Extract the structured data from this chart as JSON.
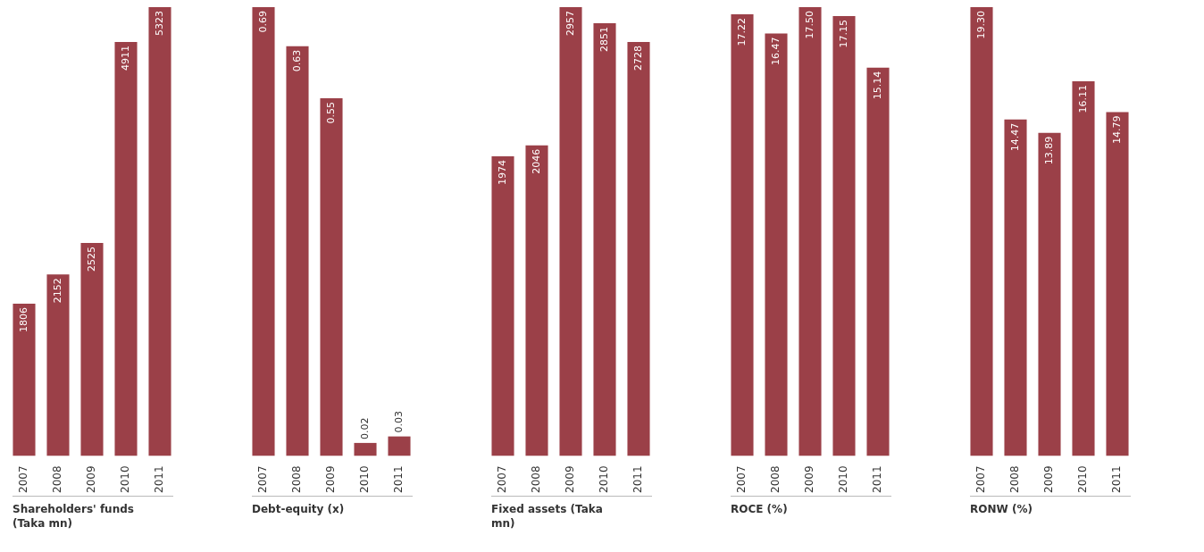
{
  "chart_data": [
    {
      "type": "bar",
      "xlabel": "Shareholders' funds (Taka mn)",
      "categories": [
        "2007",
        "2008",
        "2009",
        "2010",
        "2011"
      ],
      "values": [
        1806,
        2152,
        2525,
        4911,
        5323
      ],
      "value_labels": [
        "1806",
        "2152",
        "2525",
        "4911",
        "5323"
      ],
      "color": "#9b4048",
      "tick_labels": "x",
      "grid": false,
      "legend": false
    },
    {
      "type": "bar",
      "xlabel": "Debt-equity (x)",
      "categories": [
        "2007",
        "2008",
        "2009",
        "2010",
        "2011"
      ],
      "values": [
        0.69,
        0.63,
        0.55,
        0.02,
        0.03
      ],
      "value_labels": [
        "0.69",
        "0.63",
        "0.55",
        "0.02",
        "0.03"
      ],
      "color": "#9b4048",
      "tick_labels": "x",
      "grid": false,
      "legend": false
    },
    {
      "type": "bar",
      "xlabel": "Fixed assets (Taka mn)",
      "categories": [
        "2007",
        "2008",
        "2009",
        "2010",
        "2011"
      ],
      "values": [
        1974,
        2046,
        2957,
        2851,
        2728
      ],
      "value_labels": [
        "1974",
        "2046",
        "2957",
        "2851",
        "2728"
      ],
      "color": "#9b4048",
      "tick_labels": "x",
      "grid": false,
      "legend": false
    },
    {
      "type": "bar",
      "xlabel": "ROCE (%)",
      "categories": [
        "2007",
        "2008",
        "2009",
        "2010",
        "2011"
      ],
      "values": [
        17.22,
        16.47,
        17.5,
        17.15,
        15.14
      ],
      "value_labels": [
        "17.22",
        "16.47",
        "17.50",
        "17.15",
        "15.14"
      ],
      "color": "#9b4048",
      "tick_labels": "x",
      "grid": false,
      "legend": false
    },
    {
      "type": "bar",
      "xlabel": "RONW (%)",
      "categories": [
        "2007",
        "2008",
        "2009",
        "2010",
        "2011"
      ],
      "values": [
        19.3,
        14.47,
        13.89,
        16.11,
        14.79
      ],
      "value_labels": [
        "19.30",
        "14.47",
        "13.89",
        "16.11",
        "14.79"
      ],
      "color": "#9b4048",
      "tick_labels": "x",
      "grid": false,
      "legend": false
    }
  ]
}
